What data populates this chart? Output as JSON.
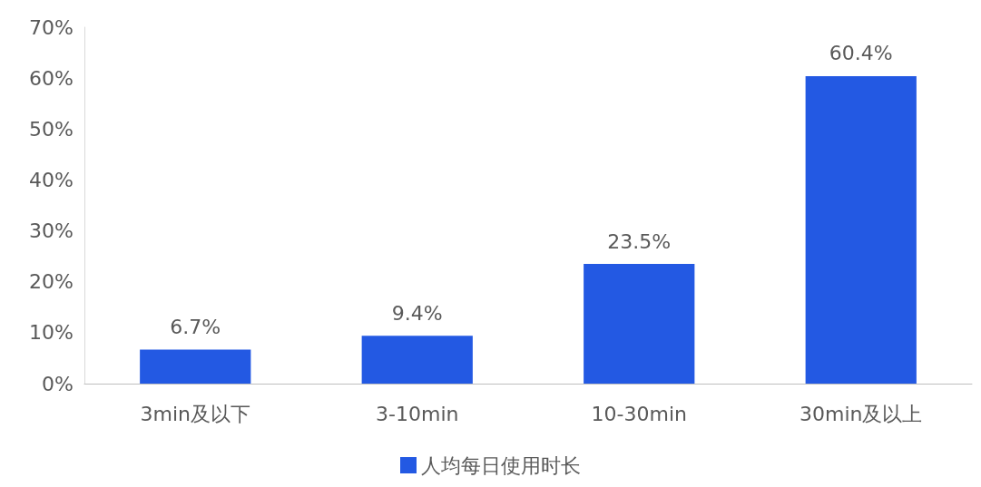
{
  "chart_data": {
    "type": "bar",
    "categories": [
      "3min及以下",
      "3-10min",
      "10-30min",
      "30min及以上"
    ],
    "series": [
      {
        "name": "人均每日使用时长",
        "color": "#2359e3",
        "values": [
          6.7,
          9.4,
          23.5,
          60.4
        ],
        "value_labels": [
          "6.7%",
          "9.4%",
          "23.5%",
          "60.4%"
        ]
      }
    ],
    "ylim": [
      0,
      70
    ],
    "yticks": [
      {
        "value": 0,
        "label": "0%"
      },
      {
        "value": 10,
        "label": "10%"
      },
      {
        "value": 20,
        "label": "20%"
      },
      {
        "value": 30,
        "label": "30%"
      },
      {
        "value": 40,
        "label": "40%"
      },
      {
        "value": 50,
        "label": "50%"
      },
      {
        "value": 60,
        "label": "60%"
      },
      {
        "value": 70,
        "label": "70%"
      }
    ],
    "grid": false,
    "legend": "bottom"
  }
}
